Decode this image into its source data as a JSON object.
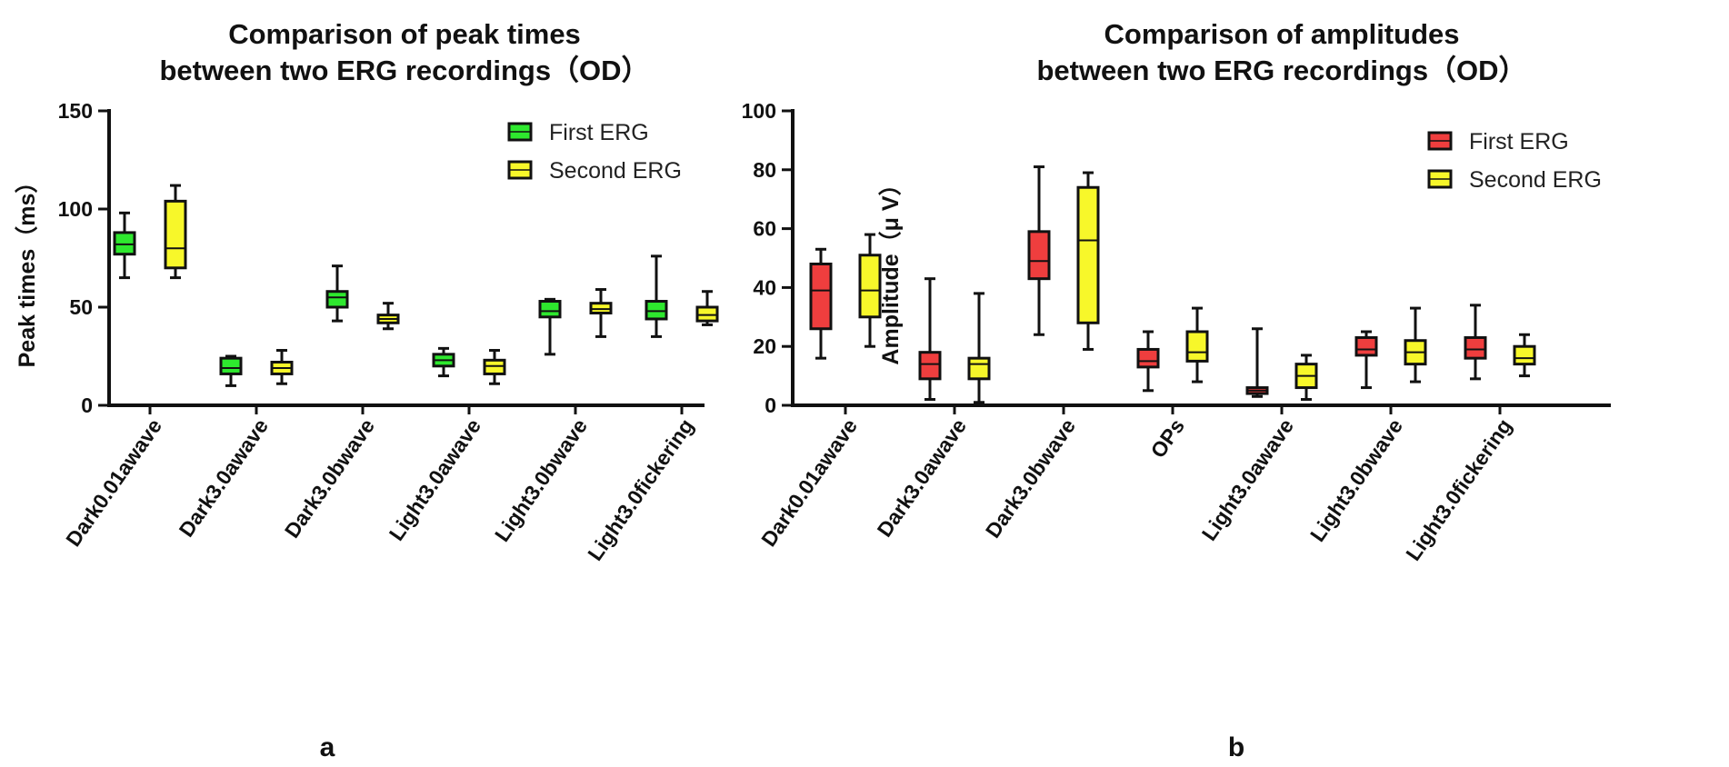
{
  "chart_data": [
    {
      "type": "boxplot",
      "panel_label": "a",
      "title_line1": "Comparison of peak times",
      "title_line2": "between two ERG recordings（OD）",
      "ylabel": "Peak times（ms）",
      "xlabel": "",
      "ylim": [
        0,
        150
      ],
      "yticks": [
        0,
        50,
        100,
        150
      ],
      "legend_position": "top-right",
      "categories": [
        "Dark0.01awave",
        "Dark3.0awave",
        "Dark3.0bwave",
        "Light3.0awave",
        "Light3.0bwave",
        "Light3.0fickering"
      ],
      "series": [
        {
          "name": "First ERG",
          "color": "#2ee82e",
          "boxes": [
            {
              "min": 65,
              "q1": 77,
              "median": 82,
              "q3": 88,
              "max": 98
            },
            {
              "min": 10,
              "q1": 16,
              "median": 19,
              "q3": 24,
              "max": 25
            },
            {
              "min": 43,
              "q1": 50,
              "median": 55,
              "q3": 58,
              "max": 71
            },
            {
              "min": 15,
              "q1": 20,
              "median": 23,
              "q3": 26,
              "max": 29
            },
            {
              "min": 26,
              "q1": 45,
              "median": 48,
              "q3": 53,
              "max": 54
            },
            {
              "min": 35,
              "q1": 44,
              "median": 48,
              "q3": 53,
              "max": 76
            }
          ]
        },
        {
          "name": "Second ERG",
          "color": "#f7f72a",
          "boxes": [
            {
              "min": 65,
              "q1": 70,
              "median": 80,
              "q3": 104,
              "max": 112
            },
            {
              "min": 11,
              "q1": 16,
              "median": 19,
              "q3": 22,
              "max": 28
            },
            {
              "min": 39,
              "q1": 42,
              "median": 44,
              "q3": 46,
              "max": 52
            },
            {
              "min": 11,
              "q1": 16,
              "median": 20,
              "q3": 23,
              "max": 28
            },
            {
              "min": 35,
              "q1": 47,
              "median": 49,
              "q3": 52,
              "max": 59
            },
            {
              "min": 41,
              "q1": 43,
              "median": 46,
              "q3": 50,
              "max": 58
            }
          ]
        }
      ]
    },
    {
      "type": "boxplot",
      "panel_label": "b",
      "title_line1": "Comparison of amplitudes",
      "title_line2": "between two ERG recordings（OD）",
      "ylabel": "Amplitude（μ V）",
      "xlabel": "",
      "ylim": [
        0,
        100
      ],
      "yticks": [
        0,
        20,
        40,
        60,
        80,
        100
      ],
      "legend_position": "top-right",
      "categories": [
        "Dark0.01awave",
        "Dark3.0awave",
        "Dark3.0bwave",
        "OPs",
        "Light3.0awave",
        "Light3.0bwave",
        "Light3.0fickering"
      ],
      "series": [
        {
          "name": "First ERG",
          "color": "#ef3e3e",
          "boxes": [
            {
              "min": 16,
              "q1": 26,
              "median": 39,
              "q3": 48,
              "max": 53
            },
            {
              "min": 2,
              "q1": 9,
              "median": 14,
              "q3": 18,
              "max": 43
            },
            {
              "min": 24,
              "q1": 43,
              "median": 49,
              "q3": 59,
              "max": 81
            },
            {
              "min": 5,
              "q1": 13,
              "median": 15,
              "q3": 19,
              "max": 25
            },
            {
              "min": 3,
              "q1": 4,
              "median": 5,
              "q3": 6,
              "max": 26
            },
            {
              "min": 6,
              "q1": 17,
              "median": 19,
              "q3": 23,
              "max": 25
            },
            {
              "min": 9,
              "q1": 16,
              "median": 19,
              "q3": 23,
              "max": 34
            }
          ]
        },
        {
          "name": "Second ERG",
          "color": "#f7f72a",
          "boxes": [
            {
              "min": 20,
              "q1": 30,
              "median": 39,
              "q3": 51,
              "max": 58
            },
            {
              "min": 1,
              "q1": 9,
              "median": 14,
              "q3": 16,
              "max": 38
            },
            {
              "min": 19,
              "q1": 28,
              "median": 56,
              "q3": 74,
              "max": 79
            },
            {
              "min": 8,
              "q1": 15,
              "median": 18,
              "q3": 25,
              "max": 33
            },
            {
              "min": 2,
              "q1": 6,
              "median": 10,
              "q3": 14,
              "max": 17
            },
            {
              "min": 8,
              "q1": 14,
              "median": 18,
              "q3": 22,
              "max": 33
            },
            {
              "min": 10,
              "q1": 14,
              "median": 16,
              "q3": 20,
              "max": 24
            }
          ]
        }
      ]
    }
  ]
}
